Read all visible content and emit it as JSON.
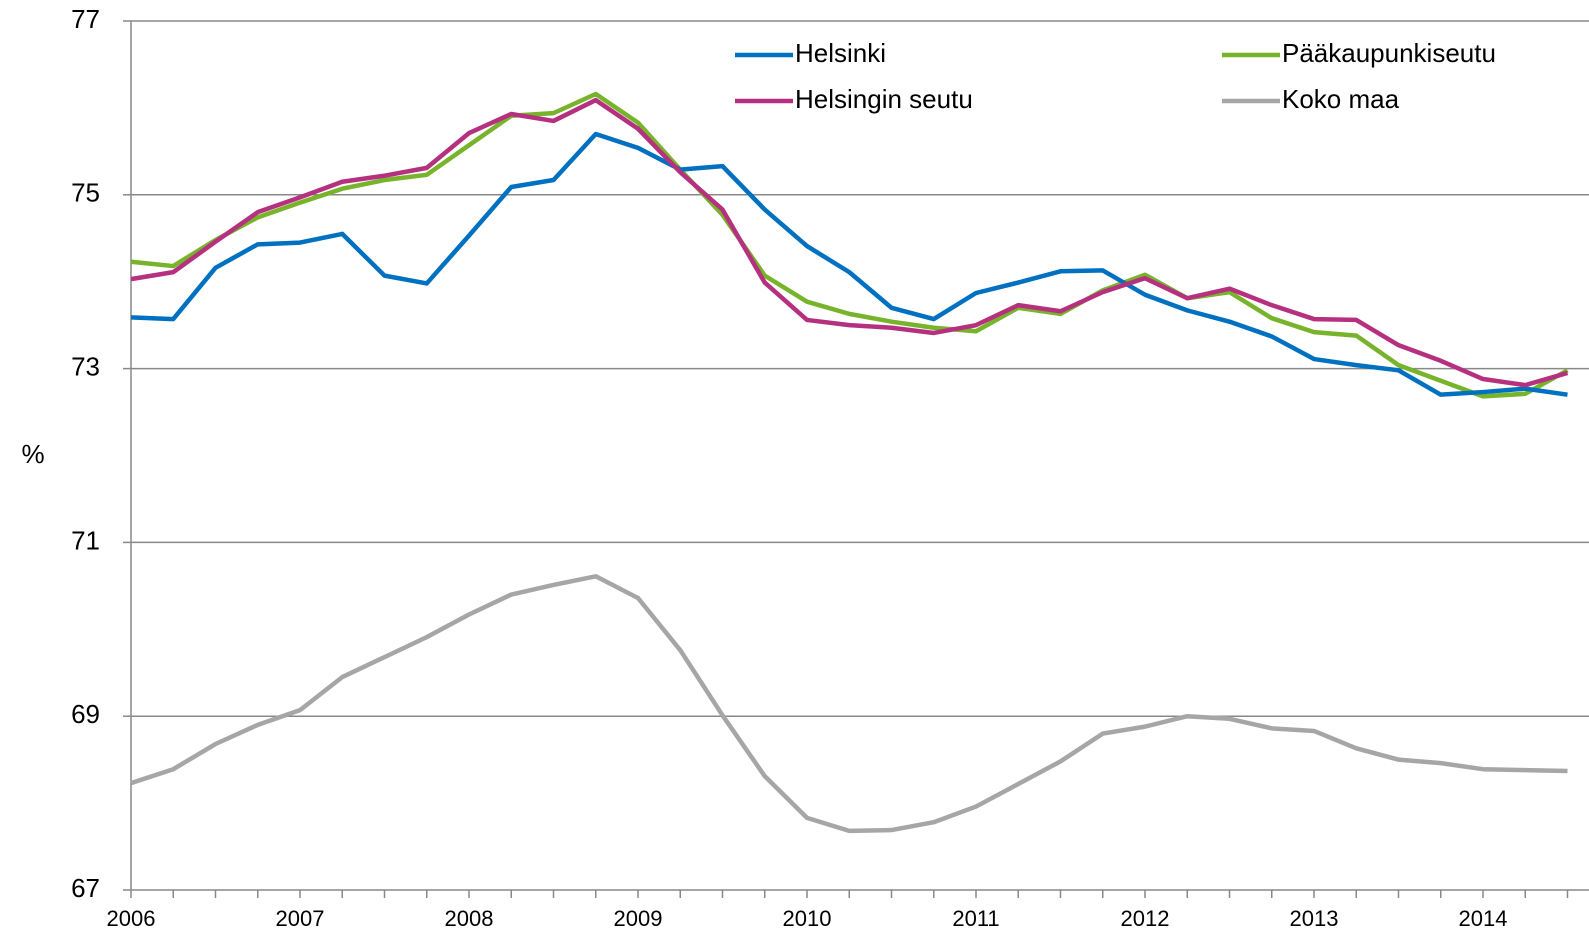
{
  "chart_data": {
    "type": "line",
    "y_label": "%",
    "categories": [
      "2006",
      null,
      null,
      null,
      "2007",
      null,
      null,
      null,
      "2008",
      null,
      null,
      null,
      "2009",
      null,
      null,
      null,
      "2010",
      null,
      null,
      null,
      "2011",
      null,
      null,
      null,
      "2012",
      null,
      null,
      null,
      "2013",
      null,
      null,
      null,
      "2014",
      null,
      null
    ],
    "ylim": [
      67,
      77
    ],
    "yticks": [
      67,
      69,
      71,
      73,
      75,
      77
    ],
    "grid": true,
    "series": [
      {
        "name": "Helsinki",
        "color": "#0070c0",
        "values": [
          73.59,
          73.57,
          74.16,
          74.43,
          74.45,
          74.55,
          74.07,
          73.98,
          74.53,
          75.09,
          75.17,
          75.7,
          75.54,
          75.29,
          75.33,
          74.83,
          74.41,
          74.11,
          73.7,
          73.57,
          73.87,
          73.99,
          74.12,
          74.13,
          73.85,
          73.67,
          73.54,
          73.37,
          73.11,
          73.04,
          72.98,
          72.7,
          72.73,
          72.77,
          72.7
        ]
      },
      {
        "name": "Pääkaupunkiseutu",
        "color": "#77b32b",
        "values": [
          74.23,
          74.18,
          74.48,
          74.74,
          74.91,
          75.07,
          75.17,
          75.23,
          75.57,
          75.91,
          75.94,
          76.16,
          75.83,
          75.29,
          74.77,
          74.07,
          73.77,
          73.63,
          73.54,
          73.47,
          73.43,
          73.7,
          73.63,
          73.9,
          74.08,
          73.81,
          73.88,
          73.58,
          73.42,
          73.38,
          73.04,
          72.86,
          72.68,
          72.71,
          72.98
        ]
      },
      {
        "name": "Helsingin seutu",
        "color": "#b5317f",
        "values": [
          74.03,
          74.11,
          74.46,
          74.8,
          74.97,
          75.15,
          75.22,
          75.31,
          75.71,
          75.93,
          75.85,
          76.09,
          75.76,
          75.26,
          74.83,
          73.99,
          73.56,
          73.5,
          73.47,
          73.41,
          73.5,
          73.73,
          73.66,
          73.88,
          74.04,
          73.81,
          73.92,
          73.73,
          73.57,
          73.56,
          73.27,
          73.09,
          72.88,
          72.81,
          72.95
        ]
      },
      {
        "name": "Koko maa",
        "color": "#a6a6a6",
        "values": [
          68.23,
          68.39,
          68.68,
          68.9,
          69.07,
          69.45,
          69.68,
          69.91,
          70.17,
          70.4,
          70.51,
          70.61,
          70.36,
          69.76,
          69.01,
          68.31,
          67.83,
          67.68,
          67.69,
          67.78,
          67.96,
          68.22,
          68.48,
          68.8,
          68.88,
          69.0,
          68.97,
          68.86,
          68.83,
          68.63,
          68.5,
          68.46,
          68.39,
          68.38,
          68.37
        ]
      }
    ]
  }
}
